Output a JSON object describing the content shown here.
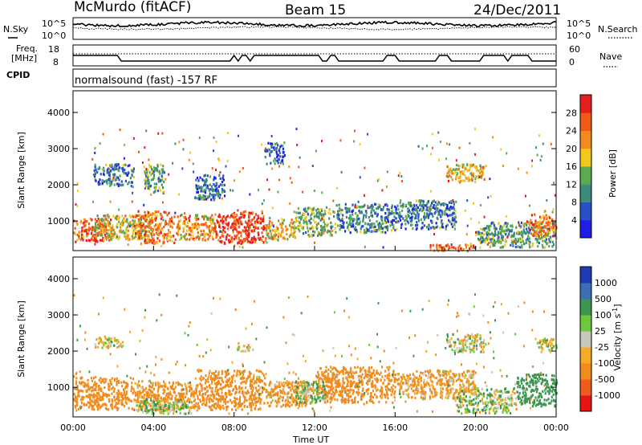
{
  "header": {
    "station": "McMurdo (fitACF)",
    "beam": "Beam 15",
    "date": "24/Dec/2011"
  },
  "noise_panel": {
    "left_label": "N.Sky",
    "right_label": "N.Search",
    "left_ticks": [
      "10^5",
      "10^0"
    ],
    "right_ticks": [
      "10^5",
      "10^0"
    ]
  },
  "freq_panel": {
    "left_label_line1": "Freq.",
    "left_label_line2": "[MHz]",
    "left_ticks": [
      "18",
      "8"
    ],
    "right_ticks": [
      "60",
      "0"
    ],
    "right_label": "Nave"
  },
  "cpid": {
    "label": "CPID",
    "text": "normalsound (fast) -157 RF"
  },
  "colors": {
    "power_scale": [
      "#1e1ee6",
      "#2850c8",
      "#3c8c78",
      "#5aaa50",
      "#f0c81e",
      "#f08c1e",
      "#f05a14",
      "#e61e1e"
    ],
    "velocity_scale": [
      "#e61414",
      "#f05a1e",
      "#f08c1e",
      "#f5aa28",
      "#c8c8be",
      "#6ec83c",
      "#3c9650",
      "#3c6eb4",
      "#1e3cb4"
    ]
  },
  "chart_data": [
    {
      "type": "heatmap",
      "panel": "power",
      "ylabel": "Slant Range [km]",
      "yticks": [
        "1000",
        "2000",
        "3000",
        "4000"
      ],
      "ylim": [
        180,
        4600
      ],
      "xlim": [
        "00:00",
        "24:00"
      ],
      "colorbar": {
        "label": "Power [dB]",
        "ticks": [
          "4",
          "8",
          "12",
          "16",
          "20",
          "24",
          "28"
        ]
      },
      "blobs": [
        {
          "t0": 0.0,
          "t1": 2.0,
          "r0": 450,
          "r1": 1100,
          "v": 26
        },
        {
          "t0": 1.0,
          "t1": 4.0,
          "r0": 500,
          "r1": 1200,
          "v": 18
        },
        {
          "t0": 3.0,
          "t1": 5.0,
          "r0": 400,
          "r1": 1300,
          "v": 24
        },
        {
          "t0": 5.0,
          "t1": 7.0,
          "r0": 500,
          "r1": 1200,
          "v": 22
        },
        {
          "t0": 7.0,
          "t1": 9.5,
          "r0": 400,
          "r1": 1300,
          "v": 29
        },
        {
          "t0": 9.5,
          "t1": 11.0,
          "r0": 500,
          "r1": 1100,
          "v": 20
        },
        {
          "t0": 11.0,
          "t1": 13.0,
          "r0": 600,
          "r1": 1400,
          "v": 14
        },
        {
          "t0": 13.0,
          "t1": 16.0,
          "r0": 700,
          "r1": 1500,
          "v": 10
        },
        {
          "t0": 16.0,
          "t1": 19.0,
          "r0": 800,
          "r1": 1600,
          "v": 9
        },
        {
          "t0": 17.5,
          "t1": 20.0,
          "r0": 200,
          "r1": 400,
          "v": 26
        },
        {
          "t0": 18.5,
          "t1": 20.5,
          "r0": 2100,
          "r1": 2600,
          "v": 20
        },
        {
          "t0": 20.0,
          "t1": 24.0,
          "r0": 300,
          "r1": 1000,
          "v": 12
        },
        {
          "t0": 22.5,
          "t1": 24.0,
          "r0": 600,
          "r1": 1200,
          "v": 24
        },
        {
          "t0": 1.0,
          "t1": 3.0,
          "r0": 2000,
          "r1": 2600,
          "v": 9
        },
        {
          "t0": 3.5,
          "t1": 4.5,
          "r0": 1800,
          "r1": 2600,
          "v": 12
        },
        {
          "t0": 6.0,
          "t1": 7.5,
          "r0": 1600,
          "r1": 2300,
          "v": 8
        },
        {
          "t0": 9.5,
          "t1": 10.5,
          "r0": 2600,
          "r1": 3200,
          "v": 7
        }
      ]
    },
    {
      "type": "heatmap",
      "panel": "velocity",
      "ylabel": "Slant Range [km]",
      "xlabel": "Time UT",
      "yticks": [
        "1000",
        "2000",
        "3000",
        "4000"
      ],
      "xticks": [
        "00:00",
        "04:00",
        "08:00",
        "12:00",
        "16:00",
        "20:00",
        "00:00"
      ],
      "ylim": [
        180,
        4600
      ],
      "xlim": [
        "00:00",
        "24:00"
      ],
      "colorbar": {
        "label_main": "Velocity [m s",
        "label_sup": "-1",
        "label_end": "]",
        "ticks": [
          "-1000",
          "-500",
          "-100",
          "-25",
          "25",
          "100",
          "500",
          "1000"
        ]
      },
      "blobs": [
        {
          "t0": 0.0,
          "t1": 3.0,
          "r0": 400,
          "r1": 1300,
          "v": -300
        },
        {
          "t0": 3.0,
          "t1": 6.0,
          "r0": 400,
          "r1": 1200,
          "v": -200
        },
        {
          "t0": 6.0,
          "t1": 9.5,
          "r0": 400,
          "r1": 1500,
          "v": -250
        },
        {
          "t0": 9.5,
          "t1": 12.0,
          "r0": 500,
          "r1": 1200,
          "v": -150
        },
        {
          "t0": 12.0,
          "t1": 16.0,
          "r0": 600,
          "r1": 1600,
          "v": -300
        },
        {
          "t0": 16.0,
          "t1": 20.0,
          "r0": 700,
          "r1": 1500,
          "v": -120
        },
        {
          "t0": 3.0,
          "t1": 6.0,
          "r0": 300,
          "r1": 700,
          "v": 60
        },
        {
          "t0": 11.0,
          "t1": 12.5,
          "r0": 600,
          "r1": 1200,
          "v": 80
        },
        {
          "t0": 18.5,
          "t1": 20.5,
          "r0": 2000,
          "r1": 2500,
          "v": 0
        },
        {
          "t0": 22.0,
          "t1": 24.0,
          "r0": 500,
          "r1": 1400,
          "v": 300
        },
        {
          "t0": 19.0,
          "t1": 22.0,
          "r0": 300,
          "r1": 1000,
          "v": 50
        },
        {
          "t0": 1.0,
          "t1": 2.5,
          "r0": 2100,
          "r1": 2400,
          "v": 0
        },
        {
          "t0": 8.0,
          "t1": 9.0,
          "r0": 2000,
          "r1": 2200,
          "v": 0
        },
        {
          "t0": 23.0,
          "t1": 24.0,
          "r0": 2000,
          "r1": 2400,
          "v": 0
        }
      ]
    }
  ]
}
